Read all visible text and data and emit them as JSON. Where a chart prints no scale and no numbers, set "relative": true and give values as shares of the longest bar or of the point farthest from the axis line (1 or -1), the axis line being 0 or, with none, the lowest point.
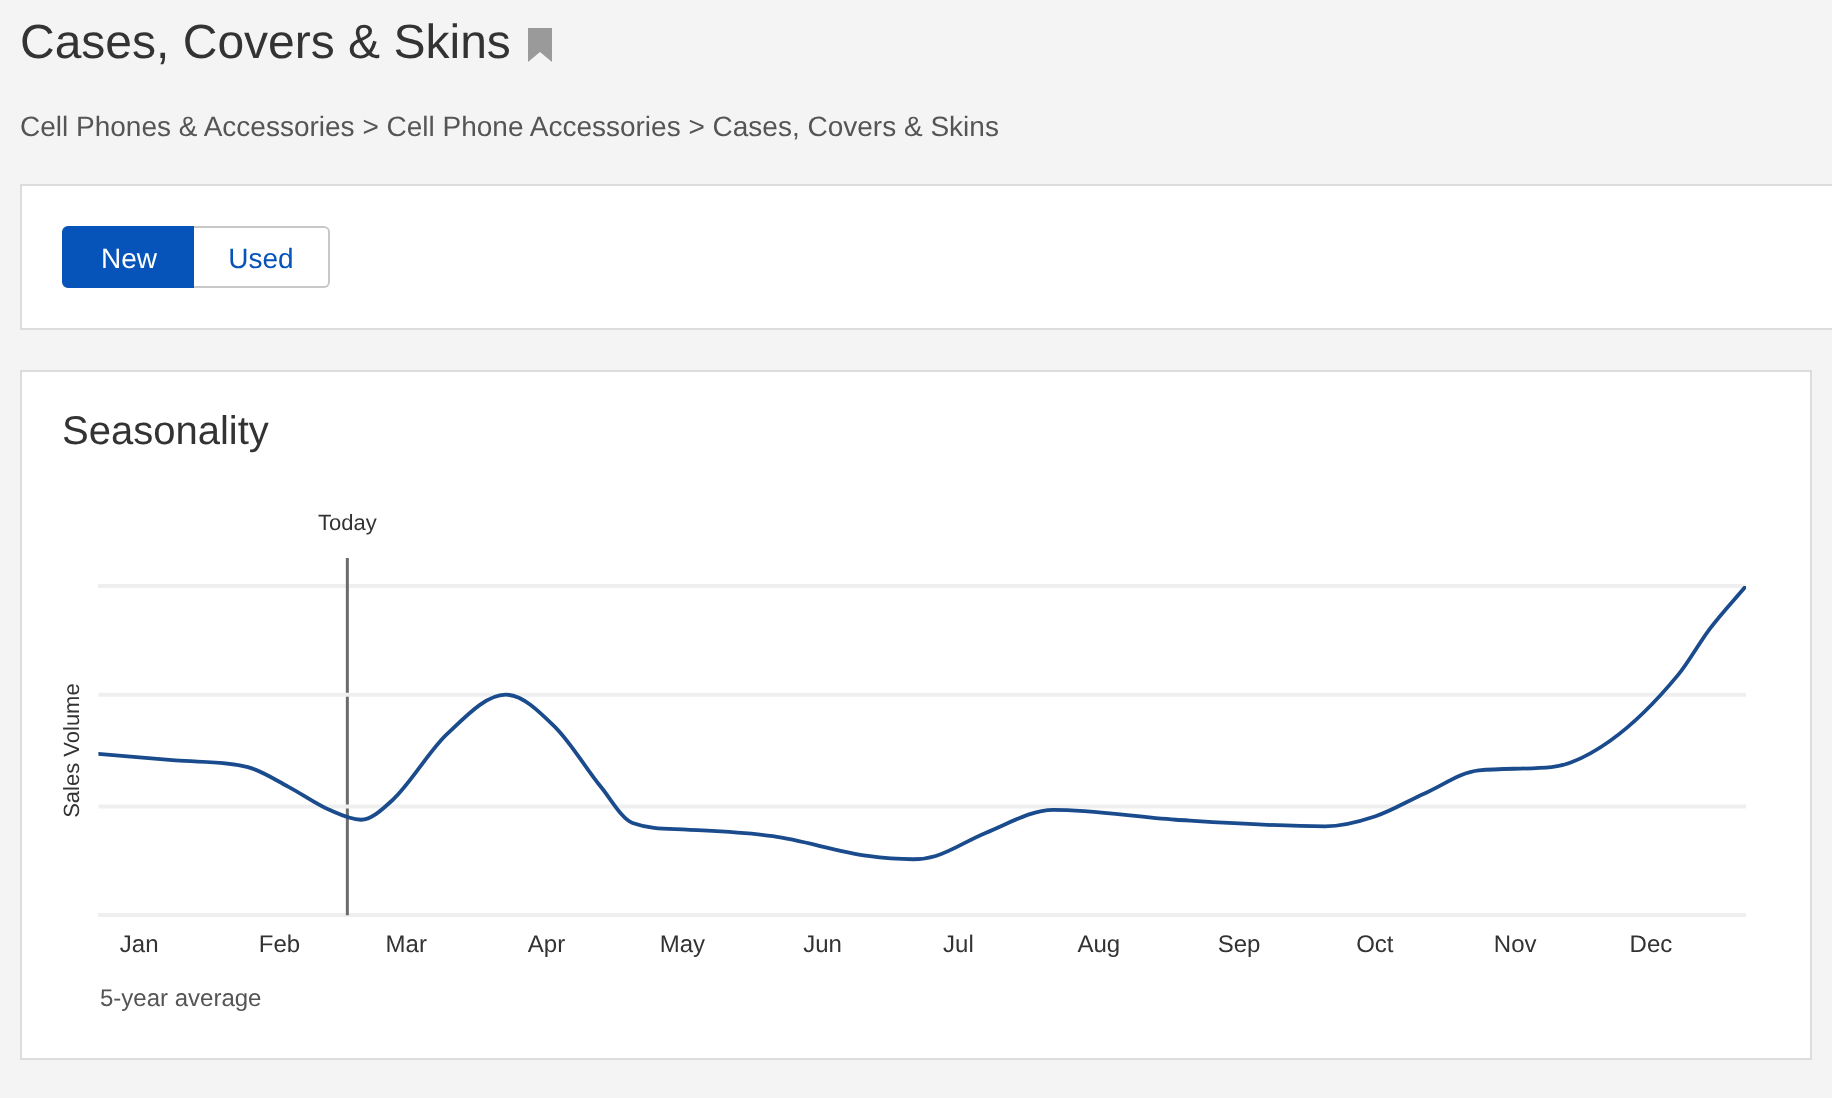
{
  "chart_data": {
    "type": "line",
    "title": "Seasonality",
    "ylabel": "Sales Volume",
    "annotations": [
      "Cases, Covers & Skins",
      "Cell Phones & Accessories > Cell Phone Accessories > Cases, Covers & Skins",
      "New",
      "Used",
      "5-year average"
    ],
    "x": [
      "--01-01",
      "--01-18",
      "--02-03",
      "--02-12",
      "--02-21",
      "--02-28",
      "--03-07",
      "--03-19",
      "--04-01",
      "--04-12",
      "--04-22",
      "--04-29",
      "--05-11",
      "--05-30",
      "--06-20",
      "--06-30",
      "--07-05",
      "--07-16",
      "--07-31",
      "--08-27",
      "--09-29",
      "--10-10",
      "--10-21",
      "--11-02",
      "--11-18",
      "--12-01",
      "--12-16",
      "--12-23",
      "--12-31"
    ],
    "xlim": [
      "--01-01",
      "--12-31"
    ],
    "xticks": [
      {
        "value": "--01-10",
        "label": "Jan"
      },
      {
        "value": "--02-10",
        "label": "Feb"
      },
      {
        "value": "--03-10",
        "label": "Mar"
      },
      {
        "value": "--04-10",
        "label": "Apr"
      },
      {
        "value": "--05-10",
        "label": "May"
      },
      {
        "value": "--06-10",
        "label": "Jun"
      },
      {
        "value": "--07-10",
        "label": "Jul"
      },
      {
        "value": "--08-10",
        "label": "Aug"
      },
      {
        "value": "--09-10",
        "label": "Sep"
      },
      {
        "value": "--10-10",
        "label": "Oct"
      },
      {
        "value": "--11-10",
        "label": "Nov"
      },
      {
        "value": "--12-10",
        "label": "Dec"
      }
    ],
    "series": [
      {
        "color": "#1a4b8c",
        "values": [
          0.49,
          0.47,
          0.45,
          0.39,
          0.32,
          0.29,
          0.35,
          0.55,
          0.67,
          0.57,
          0.39,
          0.28,
          0.26,
          0.24,
          0.18,
          0.17,
          0.18,
          0.25,
          0.32,
          0.29,
          0.27,
          0.3,
          0.37,
          0.44,
          0.45,
          0.53,
          0.73,
          0.87,
          1
        ]
      }
    ],
    "relative": true,
    "ref_lines": [
      {
        "axis": "x",
        "value": "--02-25",
        "label": "Today",
        "color": "#6b6b6b"
      },
      {
        "axis": "y",
        "value": 0.33,
        "color": "#efefef"
      },
      {
        "axis": "y",
        "value": 0.67,
        "color": "#efefef"
      }
    ],
    "grid": "y",
    "legend": false,
    "marker": "none"
  }
}
